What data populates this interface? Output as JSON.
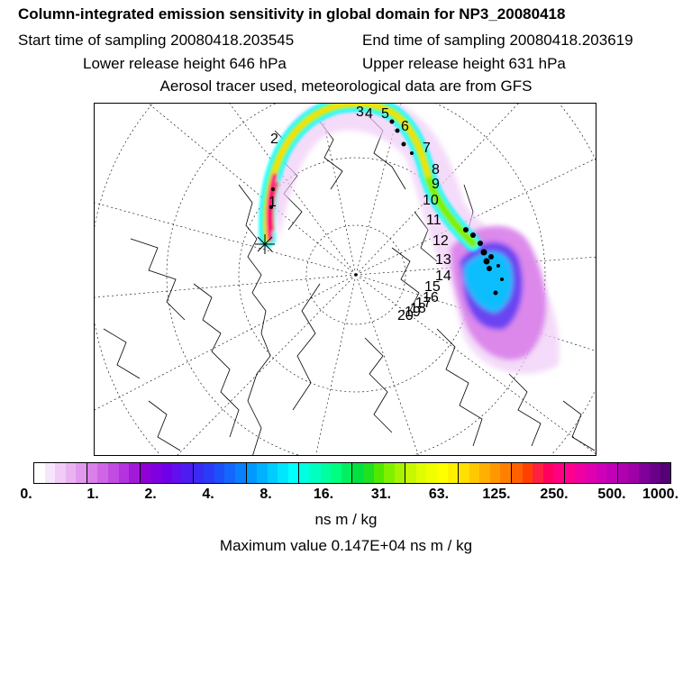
{
  "header": {
    "title": "Column-integrated emission sensitivity in global domain for NP3_20080418",
    "start_time": "Start time of sampling 20080418.203545",
    "end_time": "End time of sampling 20080418.203619",
    "lower_release": "Lower release height  646 hPa",
    "upper_release": "Upper release height  631 hPa",
    "tracer_note": "Aerosol tracer used, meteorological data are from GFS"
  },
  "map": {
    "projection": "polar stereographic (north)",
    "day_labels": [
      "1",
      "2",
      "3",
      "4",
      "5",
      "6",
      "7",
      "8",
      "9",
      "10",
      "11",
      "12",
      "13",
      "14",
      "15",
      "16",
      "17",
      "18",
      "19",
      "20"
    ]
  },
  "colorbar": {
    "tick_labels": [
      "0.",
      "1.",
      "2.",
      "4.",
      "8.",
      "16.",
      "31.",
      "63.",
      "125.",
      "250.",
      "500.",
      "1000."
    ],
    "colors": [
      "#ffffff",
      "#f7e6fb",
      "#f0ccf6",
      "#e9b3f2",
      "#e199ee",
      "#d980ea",
      "#cf66e6",
      "#c24ce2",
      "#b533de",
      "#a319da",
      "#9000d6",
      "#8000e0",
      "#7000e8",
      "#6010ec",
      "#4d1cf0",
      "#3a2af4",
      "#2a3bf8",
      "#1e50fa",
      "#1466fc",
      "#0a80fd",
      "#0099fe",
      "#00b3ff",
      "#00ccff",
      "#00e6ff",
      "#00ffff",
      "#00ffe0",
      "#00ffc0",
      "#00ffa0",
      "#00ff80",
      "#00f060",
      "#00e040",
      "#20e020",
      "#50e800",
      "#80f000",
      "#a8f400",
      "#c8f800",
      "#e0fc00",
      "#f0ff00",
      "#ffff00",
      "#fff000",
      "#ffe000",
      "#ffc800",
      "#ffb000",
      "#ff9800",
      "#ff8000",
      "#ff6000",
      "#ff4000",
      "#ff2040",
      "#ff0060",
      "#ff0080",
      "#ff0090",
      "#f000a0",
      "#e000b0",
      "#d000b8",
      "#c000b8",
      "#b000b0",
      "#a000a8",
      "#80009a",
      "#6a008a",
      "#550075"
    ],
    "unit": "ns m / kg"
  },
  "max_value": "Maximum value  0.147E+04 ns m / kg"
}
